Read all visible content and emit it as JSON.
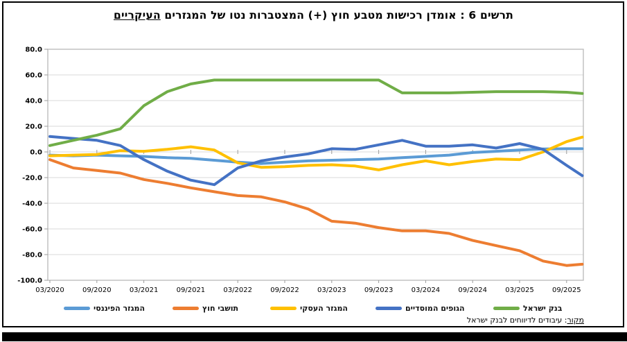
{
  "title": {
    "main": "תרשים 6 : אומדן רכישות מטבע חוץ (+) המצטברות נטו של המגזרים ",
    "underlined": "העיקריים"
  },
  "source": {
    "label_underlined": "מקור",
    "label_rest": ": עיבודים לדיווחים לבנק ישראל"
  },
  "chart_data": {
    "type": "line",
    "title": "תרשים 6 : אומדן רכישות מטבע חוץ (+) המצטברות נטו של המגזרים העיקריים",
    "xlabel": "",
    "ylabel": "",
    "ylim": [
      -100,
      80
    ],
    "y_step": 20,
    "grid": true,
    "legend_position": "bottom",
    "y_ticks": [
      "80.0",
      "60.0",
      "40.0",
      "20.0",
      "0.0",
      "-20.0",
      "-40.0",
      "-60.0",
      "-80.0",
      "-100.0"
    ],
    "x_tick_labels": [
      "03/2020",
      "09/2020",
      "03/2021",
      "09/2021",
      "03/2022",
      "09/2022",
      "03/2023",
      "09/2023",
      "03/2024",
      "09/2024",
      "03/2025",
      "09/2025"
    ],
    "categories": [
      "03/2020",
      "06/2020",
      "09/2020",
      "12/2020",
      "03/2021",
      "06/2021",
      "09/2021",
      "12/2021",
      "03/2022",
      "06/2022",
      "09/2022",
      "12/2022",
      "03/2023",
      "06/2023",
      "09/2023",
      "12/2023",
      "03/2024",
      "06/2024",
      "09/2024",
      "12/2024",
      "03/2025",
      "06/2025",
      "09/2025",
      "11/2025"
    ],
    "series": [
      {
        "name": "המגזר הפיננסי",
        "color": "#5B9BD5",
        "values": [
          -2.5,
          -3,
          -2.5,
          -3,
          -3.5,
          -4.5,
          -5,
          -6.5,
          -8,
          -9,
          -8,
          -7,
          -6.5,
          -6,
          -5.5,
          -4.5,
          -3.5,
          -2.5,
          -0.5,
          0.5,
          1.5,
          2.3,
          2.5,
          2.5
        ]
      },
      {
        "name": "תושבי חוץ",
        "color": "#ED7D31",
        "values": [
          -6,
          -12.5,
          -14.5,
          -16.5,
          -21.5,
          -24.5,
          -28,
          -31,
          -34,
          -35,
          -39,
          -44.5,
          -54,
          -55.5,
          -59,
          -61.5,
          -61.5,
          -63.5,
          -69,
          -73,
          -77,
          -85,
          -88.5,
          -87.5
        ]
      },
      {
        "name": "המגזר העסקי",
        "color": "#FFC000",
        "values": [
          -3,
          -2.5,
          -2,
          1,
          0.5,
          2,
          4,
          1.5,
          -8.5,
          -12,
          -11.5,
          -10.5,
          -10,
          -11,
          -14,
          -10,
          -7,
          -10,
          -7.5,
          -5.5,
          -6,
          0,
          8,
          11.5
        ]
      },
      {
        "name": "הגופים המוסדיים",
        "color": "#4472C4",
        "values": [
          12,
          10.5,
          9,
          5,
          -6,
          -15,
          -22,
          -25.5,
          -12.5,
          -7,
          -4,
          -1.5,
          2.5,
          2,
          5.5,
          9,
          4.5,
          4.5,
          5.5,
          3,
          6.5,
          2,
          -10.5,
          -18.5
        ]
      },
      {
        "name": "בנק ישראל",
        "color": "#70AD47",
        "values": [
          5,
          9,
          13,
          18,
          36,
          47,
          53,
          56,
          56,
          56,
          56,
          56,
          56,
          56,
          56,
          46,
          46,
          46,
          46.5,
          47,
          47,
          47,
          46.5,
          45.5
        ]
      }
    ]
  }
}
